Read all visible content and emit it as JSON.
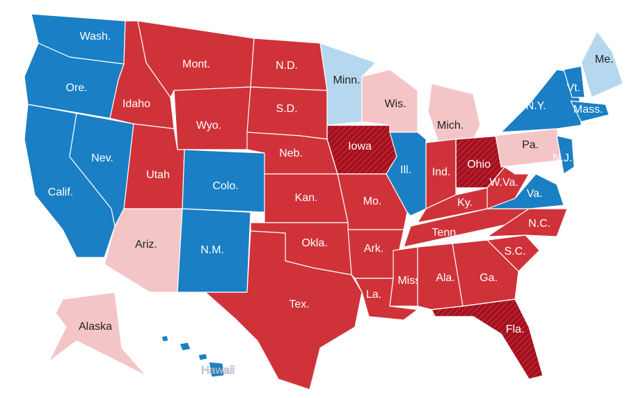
{
  "states": [
    {
      "label": "Wash.",
      "color": "#1a7fc4",
      "hatched": false
    },
    {
      "label": "Ore.",
      "color": "#1a7fc4",
      "hatched": false
    },
    {
      "label": "Calif.",
      "color": "#1a7fc4",
      "hatched": false
    },
    {
      "label": "Nev.",
      "color": "#1a7fc4",
      "hatched": false
    },
    {
      "label": "Idaho",
      "color": "#cf3339",
      "hatched": false
    },
    {
      "label": "Mont.",
      "color": "#cf3339",
      "hatched": false
    },
    {
      "label": "Wyo.",
      "color": "#cf3339",
      "hatched": false
    },
    {
      "label": "Utah",
      "color": "#cf3339",
      "hatched": false
    },
    {
      "label": "Colo.",
      "color": "#1a7fc4",
      "hatched": false
    },
    {
      "label": "Ariz.",
      "color": "#f4c5c7",
      "hatched": false
    },
    {
      "label": "N.M.",
      "color": "#1a7fc4",
      "hatched": false
    },
    {
      "label": "N.D.",
      "color": "#cf3339",
      "hatched": false
    },
    {
      "label": "S.D.",
      "color": "#cf3339",
      "hatched": false
    },
    {
      "label": "Neb.",
      "color": "#cf3339",
      "hatched": false
    },
    {
      "label": "Kan.",
      "color": "#cf3339",
      "hatched": false
    },
    {
      "label": "Okla.",
      "color": "#cf3339",
      "hatched": false
    },
    {
      "label": "Tex.",
      "color": "#cf3339",
      "hatched": false
    },
    {
      "label": "Minn.",
      "color": "#b5d8ef",
      "hatched": false
    },
    {
      "label": "Iowa",
      "color": "#a3111f",
      "hatched": true
    },
    {
      "label": "Mo.",
      "color": "#cf3339",
      "hatched": false
    },
    {
      "label": "Ark.",
      "color": "#cf3339",
      "hatched": false
    },
    {
      "label": "La.",
      "color": "#cf3339",
      "hatched": false
    },
    {
      "label": "Wis.",
      "color": "#f4c5c7",
      "hatched": false
    },
    {
      "label": "Ill.",
      "color": "#1a7fc4",
      "hatched": false
    },
    {
      "label": "Mich.",
      "color": "#f4c5c7",
      "hatched": false
    },
    {
      "label": "Ind.",
      "color": "#cf3339",
      "hatched": false
    },
    {
      "label": "Ohio",
      "color": "#a3111f",
      "hatched": true
    },
    {
      "label": "Ky.",
      "color": "#cf3339",
      "hatched": false
    },
    {
      "label": "Tenn.",
      "color": "#cf3339",
      "hatched": false
    },
    {
      "label": "Miss.",
      "color": "#cf3339",
      "hatched": false
    },
    {
      "label": "Ala.",
      "color": "#cf3339",
      "hatched": false
    },
    {
      "label": "Ga.",
      "color": "#cf3339",
      "hatched": false
    },
    {
      "label": "Fla.",
      "color": "#a3111f",
      "hatched": true
    },
    {
      "label": "S.C.",
      "color": "#cf3339",
      "hatched": false
    },
    {
      "label": "N.C.",
      "color": "#cf3339",
      "hatched": false
    },
    {
      "label": "Va.",
      "color": "#1a7fc4",
      "hatched": false
    },
    {
      "label": "W.Va.",
      "color": "#cf3339",
      "hatched": false
    },
    {
      "label": "Pa.",
      "color": "#f4c5c7",
      "hatched": false
    },
    {
      "label": "N.Y.",
      "color": "#1a7fc4",
      "hatched": false
    },
    {
      "label": "Vt.",
      "color": "#1a7fc4",
      "hatched": false
    },
    {
      "label": "Mass.",
      "color": "#1a7fc4",
      "hatched": false
    },
    {
      "label": "N.J.",
      "color": "#1a7fc4",
      "hatched": false
    },
    {
      "label": "Me.",
      "color": "#b5d8ef",
      "hatched": false
    },
    {
      "label": "Alaska",
      "color": "#f4c5c7",
      "hatched": false
    },
    {
      "label": "Hawaii",
      "color": "#1a7fc4",
      "hatched": false
    }
  ]
}
